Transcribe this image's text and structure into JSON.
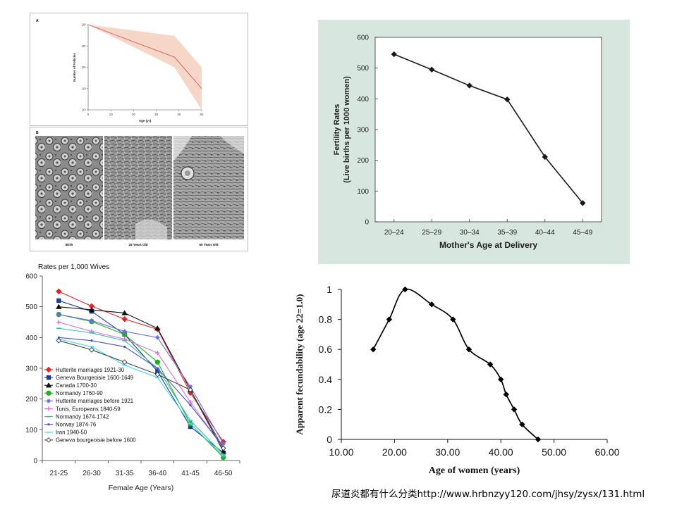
{
  "caption": "尿道炎都有什么分类http://www.hrbnzyy120.com/jhsy/zysx/131.html",
  "colors": {
    "fertility_background": "#d7e7e0",
    "fertility_line": "#1a1a1a",
    "follicle_band": "#f6d6c6",
    "follicle_line": "#d24a5a",
    "fecund_line": "#000000"
  },
  "chart_data": [
    {
      "id": "follicles",
      "type": "area",
      "panel_label": "A",
      "xlabel": "Age (yr)",
      "ylabel": "Number of Follicles",
      "xlim": [
        0,
        50
      ],
      "x_ticks": [
        "0",
        "10",
        "20",
        "30",
        "40",
        "50"
      ],
      "y_scale": "log",
      "y_ticks": [
        "10⁶",
        "10⁵",
        "10⁴",
        "10³",
        "10²"
      ],
      "series": [
        {
          "x": [
            0,
            38,
            50
          ],
          "median": [
            1000000,
            30000,
            1000
          ],
          "lower": [
            1000000,
            10000,
            100
          ],
          "upper": [
            1000000,
            300000,
            10000
          ]
        }
      ],
      "images": {
        "panel_label": "B",
        "captions": [
          "Birth",
          "25 Years Old",
          "50 Years Old"
        ]
      }
    },
    {
      "id": "fertility",
      "type": "line",
      "xlabel": "Mother's Age at Delivery",
      "ylabel": "Fertility Rates",
      "ylabel_sub": "(Live births per 1000 women)",
      "categories": [
        "20–24",
        "25–29",
        "30–34",
        "35–39",
        "40–44",
        "45–49"
      ],
      "values": [
        545,
        495,
        443,
        398,
        211,
        61
      ],
      "ylim": [
        0,
        600
      ],
      "y_ticks": [
        0,
        100,
        200,
        300,
        400,
        500,
        600
      ],
      "grid": false
    },
    {
      "id": "rates_per_wives",
      "type": "line",
      "title": "Rates per 1,000 Wives",
      "xlabel": "Female Age (Years)",
      "categories": [
        "21-25",
        "26-30",
        "31-35",
        "36-40",
        "41-45",
        "46-50"
      ],
      "ylim": [
        0,
        600
      ],
      "y_ticks": [
        0,
        100,
        200,
        300,
        400,
        500,
        600
      ],
      "legend_position": "bottom-left",
      "series": [
        {
          "name": "Hutterite marriages 1921-30",
          "color": "#e8202a",
          "marker": "diamond",
          "values": [
            550,
            502,
            460,
            427,
            220,
            61
          ]
        },
        {
          "name": "Geneva Bourgeoisie 1600-1649",
          "color": "#1f3a9a",
          "marker": "square",
          "values": [
            520,
            485,
            410,
            290,
            110,
            25
          ]
        },
        {
          "name": "Canada 1700-30",
          "color": "#111111",
          "marker": "triangle",
          "values": [
            500,
            490,
            480,
            430,
            230,
            30
          ]
        },
        {
          "name": "Normandy 1760-90",
          "color": "#22b022",
          "marker": "circle",
          "values": [
            475,
            452,
            410,
            320,
            120,
            10
          ]
        },
        {
          "name": "Hutterite marriages before 1921",
          "color": "#6a6ae8",
          "marker": "star",
          "values": [
            475,
            455,
            420,
            400,
            240,
            55
          ]
        },
        {
          "name": "Tunis, Europeans 1840-59",
          "color": "#d870d8",
          "marker": "plus",
          "values": [
            450,
            420,
            395,
            350,
            190,
            40
          ]
        },
        {
          "name": "Normandy 1674-1742",
          "color": "#30c0a0",
          "marker": "dash",
          "values": [
            430,
            415,
            390,
            300,
            130,
            20
          ]
        },
        {
          "name": "Norway 1874-76",
          "color": "#5050c0",
          "marker": "dot",
          "values": [
            400,
            390,
            370,
            300,
            180,
            45
          ]
        },
        {
          "name": "Iran 1940-50",
          "color": "#40d8f0",
          "marker": "dash",
          "values": [
            395,
            370,
            310,
            270,
            120,
            15
          ]
        },
        {
          "name": "Geneva bourgeoisie before 1600",
          "color": "#444444",
          "marker": "open-diamond",
          "values": [
            390,
            360,
            320,
            280,
            230,
            40
          ]
        }
      ]
    },
    {
      "id": "fecundability",
      "type": "line",
      "xlabel": "Age of women (years)",
      "ylabel": "Apparent fecundability (age 22=1.0)",
      "xlim": [
        10,
        60
      ],
      "ylim": [
        0,
        1
      ],
      "x_ticks": [
        "10.00",
        "20.00",
        "30.00",
        "40.00",
        "50.00",
        "60.00"
      ],
      "y_ticks": [
        "0",
        "0.2",
        "0.4",
        "0.6",
        "0.8",
        "1"
      ],
      "x": [
        16,
        19,
        22,
        27,
        31,
        34,
        38,
        40,
        41,
        42.5,
        44,
        47
      ],
      "values": [
        0.6,
        0.8,
        1.0,
        0.9,
        0.8,
        0.6,
        0.5,
        0.4,
        0.3,
        0.2,
        0.1,
        0.0
      ],
      "smooth": true
    }
  ]
}
